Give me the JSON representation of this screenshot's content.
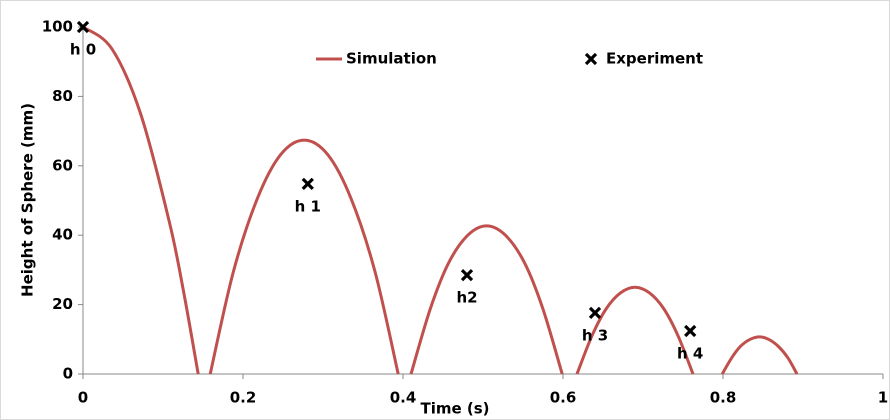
{
  "chart_data": {
    "type": "line",
    "xlabel": "Time (s)",
    "ylabel": "Height of Sphere (mm)",
    "xlim": [
      0,
      1
    ],
    "xticks": [
      0,
      0.2,
      0.4,
      0.6,
      0.8,
      1
    ],
    "ylim": [
      0,
      100
    ],
    "yticks": [
      0,
      20,
      40,
      60,
      80,
      100
    ],
    "legend": "top",
    "series": [
      {
        "name": "Simulation",
        "color": "#c0504d",
        "style": "line",
        "x": [
          0,
          0.036,
          0.072,
          0.108,
          0.126,
          0.144,
          null,
          0.159,
          0.188,
          0.218,
          0.247,
          0.2765,
          0.306,
          0.335,
          0.365,
          0.394,
          null,
          0.41,
          0.434,
          0.457,
          0.481,
          0.5045,
          0.528,
          0.552,
          0.575,
          0.599,
          null,
          0.6175,
          0.636,
          0.654,
          0.672,
          0.69,
          0.708,
          0.726,
          0.744,
          0.7625,
          null,
          0.799,
          0.811,
          0.822,
          0.834,
          0.846,
          0.857,
          0.869,
          0.881,
          0.8925
        ],
        "values": [
          100,
          93.75,
          75,
          43.75,
          23.4,
          0,
          null,
          0,
          29.5,
          50.6,
          63.2,
          67.4,
          63.2,
          50.6,
          29.5,
          0,
          null,
          0,
          18.7,
          32.0,
          40.0,
          42.7,
          40.0,
          32.0,
          18.7,
          0,
          null,
          0,
          10.9,
          18.8,
          23.4,
          25,
          23.4,
          18.8,
          10.9,
          0,
          null,
          0,
          4.7,
          8.0,
          10.0,
          10.7,
          10.0,
          8.0,
          4.7,
          0
        ]
      },
      {
        "name": "Experiment",
        "color": "#000000",
        "style": "marker",
        "x": [
          0,
          0.281,
          0.48,
          0.64,
          0.759
        ],
        "values": [
          100,
          54.8,
          28.5,
          17.6,
          12.4
        ],
        "point_labels": [
          "h 0",
          "h 1",
          "h2",
          "h 3",
          "h 4"
        ]
      }
    ]
  }
}
